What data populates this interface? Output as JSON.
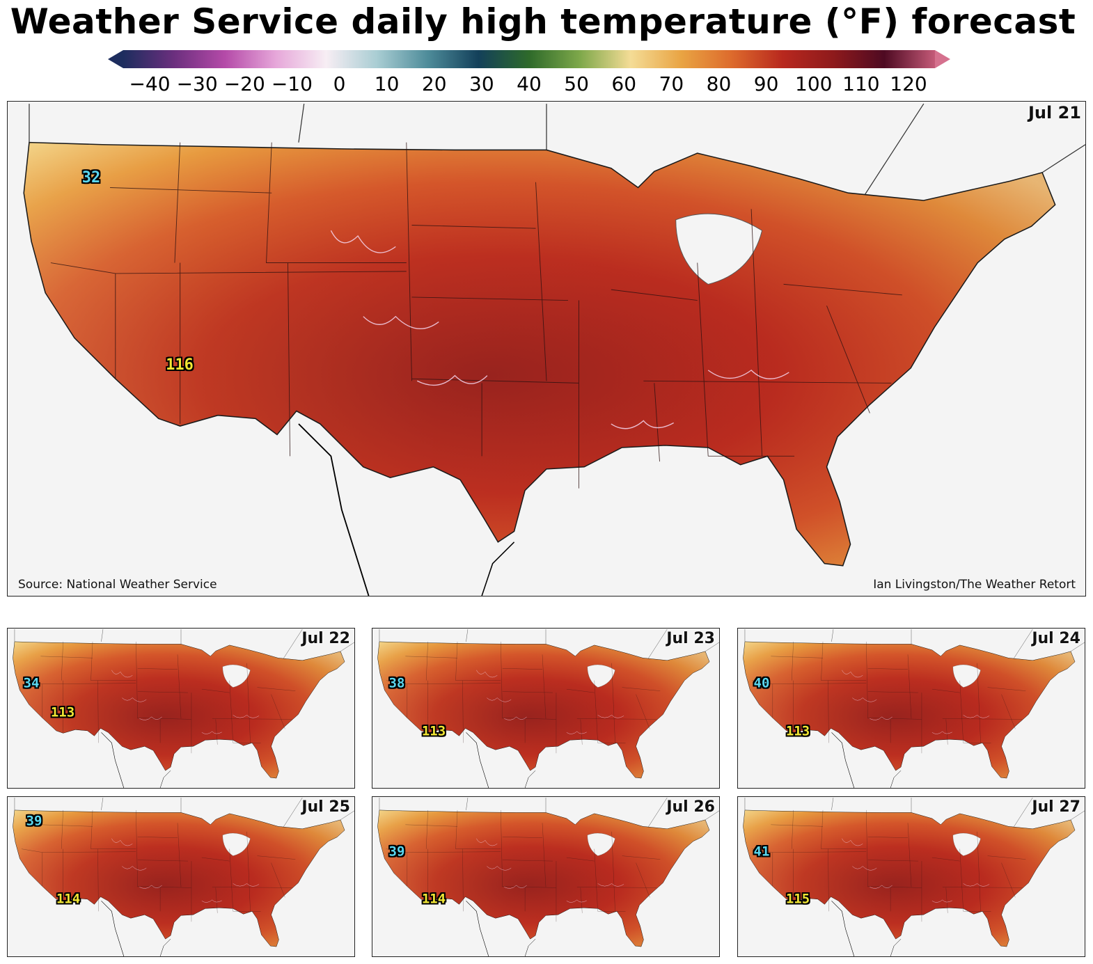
{
  "title": "Weather Service daily high temperature (°F) forecast",
  "colorbar": {
    "ticks": [
      "−40",
      "−30",
      "−20",
      "−10",
      "0",
      "10",
      "20",
      "30",
      "40",
      "50",
      "60",
      "70",
      "80",
      "90",
      "100",
      "110",
      "120"
    ],
    "range": [
      -40,
      120
    ],
    "extend": "both",
    "stops": [
      {
        "v": -40,
        "c": "#1d2d5e"
      },
      {
        "v": -30,
        "c": "#6b2f7e"
      },
      {
        "v": -20,
        "c": "#b44aa8"
      },
      {
        "v": -10,
        "c": "#e6a6d9"
      },
      {
        "v": 0,
        "c": "#f7eef4"
      },
      {
        "v": 10,
        "c": "#a9cdd3"
      },
      {
        "v": 20,
        "c": "#4e8c9a"
      },
      {
        "v": 30,
        "c": "#13405a"
      },
      {
        "v": 40,
        "c": "#2e6a2a"
      },
      {
        "v": 50,
        "c": "#7ea84a"
      },
      {
        "v": 60,
        "c": "#f4dc96"
      },
      {
        "v": 70,
        "c": "#e9a443"
      },
      {
        "v": 80,
        "c": "#dd6a2c"
      },
      {
        "v": 90,
        "c": "#b8281e"
      },
      {
        "v": 100,
        "c": "#8e1a1c"
      },
      {
        "v": 110,
        "c": "#4e0a22"
      },
      {
        "v": 120,
        "c": "#c45a78"
      }
    ]
  },
  "main_panel": {
    "date": "Jul 21",
    "min_value": "32",
    "max_value": "116",
    "source": "Source: National Weather Service",
    "credit": "Ian Livingston/The Weather Retort"
  },
  "small_panels": [
    {
      "date": "Jul 22",
      "min_value": "34",
      "max_value": "113"
    },
    {
      "date": "Jul 23",
      "min_value": "38",
      "max_value": "113"
    },
    {
      "date": "Jul 24",
      "min_value": "40",
      "max_value": "113"
    },
    {
      "date": "Jul 25",
      "min_value": "39",
      "max_value": "114"
    },
    {
      "date": "Jul 26",
      "min_value": "39",
      "max_value": "114"
    },
    {
      "date": "Jul 27",
      "min_value": "41",
      "max_value": "115"
    }
  ]
}
